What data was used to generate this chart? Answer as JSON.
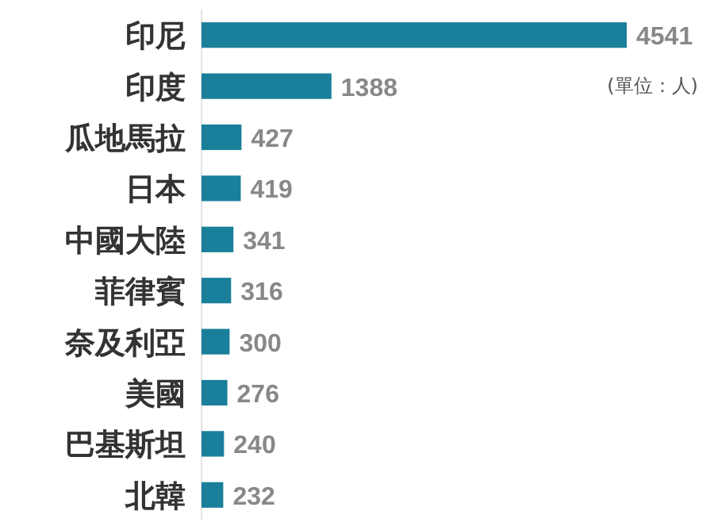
{
  "chart_data": {
    "type": "bar",
    "orientation": "horizontal",
    "categories": [
      "印尼",
      "印度",
      "瓜地馬拉",
      "日本",
      "中國大陸",
      "菲律賓",
      "奈及利亞",
      "美國",
      "巴基斯坦",
      "北韓"
    ],
    "values": [
      4541,
      1388,
      427,
      419,
      341,
      316,
      300,
      276,
      240,
      232
    ],
    "color": "#1a7f9a",
    "data_labels": true,
    "annotations": [
      "(單位：人)"
    ]
  }
}
